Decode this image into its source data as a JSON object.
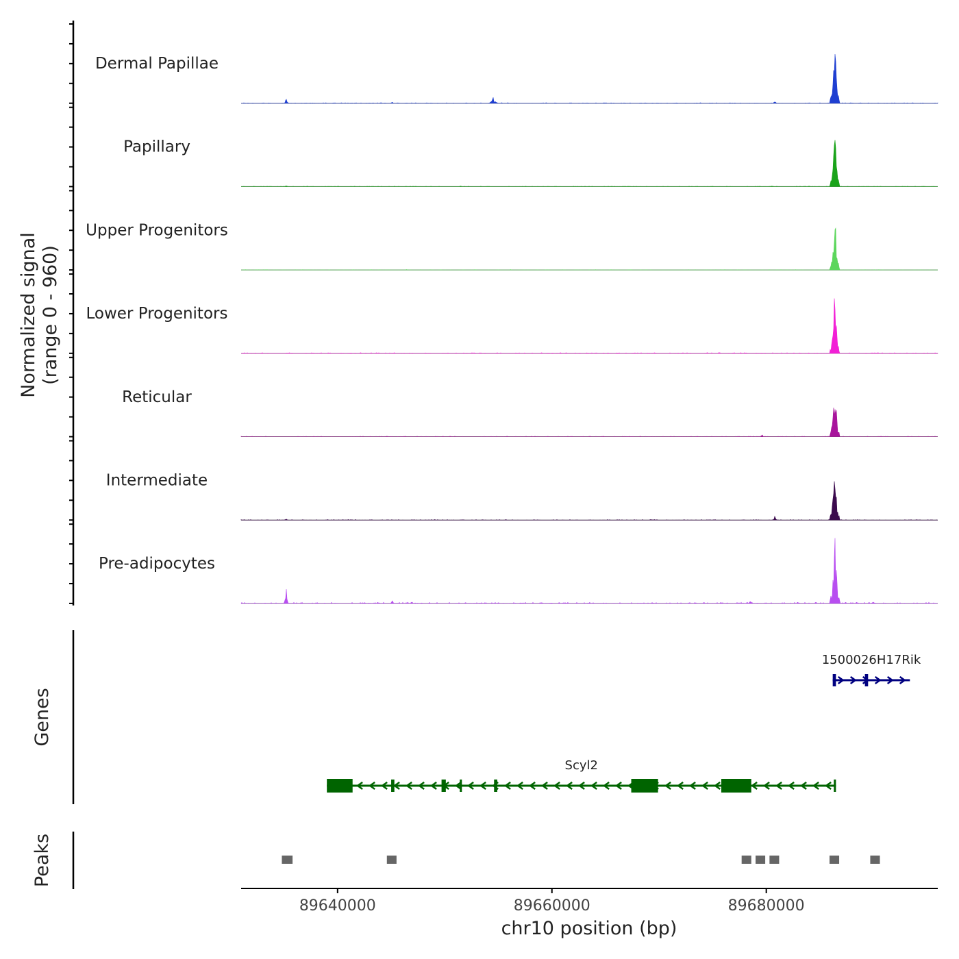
{
  "chart_data": {
    "type": "area",
    "title": "",
    "chromosome": "chr10",
    "xlabel": "chr10 position (bp)",
    "ylabel_line1": "Normalized signal",
    "ylabel_line2": "(range 0 - 960)",
    "xlim": [
      89631000,
      89696000
    ],
    "x_ticks": [
      89640000,
      89660000,
      89680000
    ],
    "x_tick_labels": [
      "89640000",
      "89660000",
      "89680000"
    ],
    "ylim": [
      0,
      960
    ],
    "tracks": [
      {
        "name": "Dermal Papillae",
        "color": "#1f3fd1",
        "baseline_noise": 6,
        "peaks": [
          [
            89635200,
            70,
            70
          ],
          [
            89645100,
            25,
            60
          ],
          [
            89654500,
            95,
            140
          ],
          [
            89680800,
            40,
            80
          ],
          [
            89686400,
            940,
            150
          ]
        ]
      },
      {
        "name": "Papillary",
        "color": "#1aa31a",
        "baseline_noise": 5,
        "peaks": [
          [
            89635200,
            30,
            70
          ],
          [
            89651500,
            15,
            60
          ],
          [
            89680500,
            20,
            70
          ],
          [
            89686400,
            900,
            150
          ]
        ]
      },
      {
        "name": "Upper Progenitors",
        "color": "#5cd65c",
        "baseline_noise": 4,
        "peaks": [
          [
            89686400,
            920,
            150
          ]
        ]
      },
      {
        "name": "Lower Progenitors",
        "color": "#f21fd6",
        "baseline_noise": 8,
        "peaks": [
          [
            89686400,
            930,
            150
          ]
        ]
      },
      {
        "name": "Reticular",
        "color": "#a8149c",
        "baseline_noise": 5,
        "peaks": [
          [
            89679600,
            35,
            70
          ],
          [
            89686400,
            880,
            150
          ]
        ]
      },
      {
        "name": "Intermediate",
        "color": "#3b0a4d",
        "baseline_noise": 6,
        "peaks": [
          [
            89635200,
            25,
            70
          ],
          [
            89680800,
            55,
            80
          ],
          [
            89686400,
            900,
            150
          ]
        ]
      },
      {
        "name": "Pre-adipocytes",
        "color": "#b84ef0",
        "baseline_noise": 14,
        "peaks": [
          [
            89635200,
            240,
            70
          ],
          [
            89645100,
            45,
            70
          ],
          [
            89678500,
            40,
            80
          ],
          [
            89686400,
            1000,
            160
          ],
          [
            89690000,
            45,
            80
          ]
        ]
      }
    ],
    "genes_label": "Genes",
    "genes": [
      {
        "name": "1500026H17Rik",
        "color": "#000080",
        "strand": "+",
        "start": 89686200,
        "end": 89693400,
        "exons": [
          [
            89686200,
            89686500
          ],
          [
            89689200,
            89689500
          ]
        ]
      },
      {
        "name": "Scyl2",
        "color": "#006400",
        "strand": "-",
        "start": 89639000,
        "end": 89686500,
        "exons": [
          [
            89639000,
            89641400
          ],
          [
            89645000,
            89645300
          ],
          [
            89649700,
            89650100
          ],
          [
            89651400,
            89651600
          ],
          [
            89654600,
            89654900
          ],
          [
            89667400,
            89669900
          ],
          [
            89675800,
            89678600
          ],
          [
            89686300,
            89686500
          ]
        ]
      }
    ],
    "peaks_label": "Peaks",
    "peak_regions": [
      [
        89634800,
        89635800
      ],
      [
        89644600,
        89645500
      ],
      [
        89677700,
        89678600
      ],
      [
        89679000,
        89679900
      ],
      [
        89680300,
        89681200
      ],
      [
        89685900,
        89686800
      ],
      [
        89689700,
        89690600
      ]
    ],
    "peak_color": "#666666"
  }
}
